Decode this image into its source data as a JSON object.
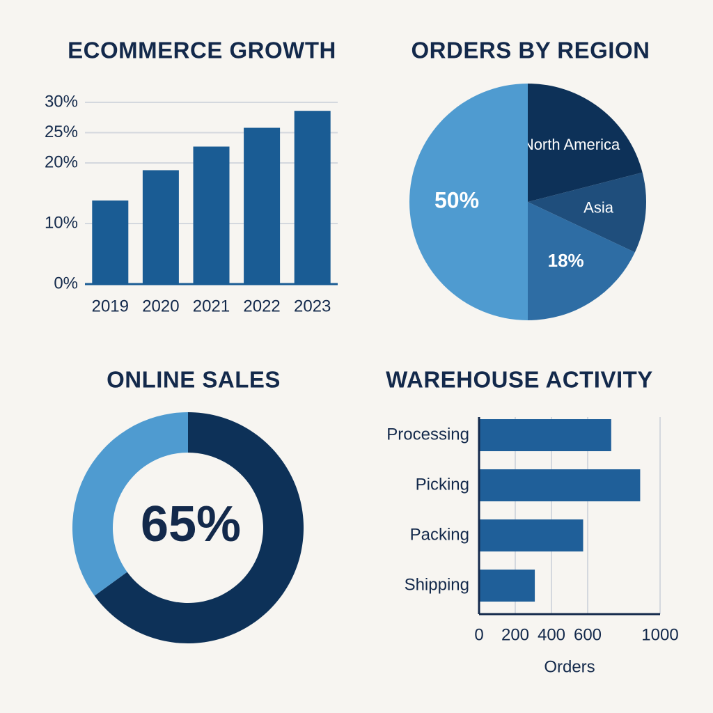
{
  "chart_data": [
    {
      "type": "bar",
      "title": "ECOMMERCE GROWTH",
      "categories": [
        "2019",
        "2020",
        "2021",
        "2022",
        "2023"
      ],
      "values": [
        13.8,
        18.8,
        22.7,
        25.8,
        28.6
      ],
      "color": "#1a5c94",
      "ylim": [
        0,
        30
      ],
      "yticks": [
        {
          "value": 0,
          "label": "0%"
        },
        {
          "value": 10,
          "label": "10%"
        },
        {
          "value": 20,
          "label": "20%"
        },
        {
          "value": 25,
          "label": "25%"
        },
        {
          "value": 30,
          "label": "30%"
        }
      ],
      "grid": true
    },
    {
      "type": "pie",
      "title": "ORDERS BY REGION",
      "categories": [
        "North America",
        "Asia",
        null,
        null
      ],
      "values": [
        21,
        11,
        18,
        50
      ],
      "value_labels": [
        null,
        null,
        "18%",
        "50%"
      ],
      "colors": [
        "#0d3158",
        "#1f4e7c",
        "#2e6da4",
        "#4f9bd0"
      ]
    },
    {
      "type": "donut",
      "title": "ONLINE SALES",
      "values": [
        65,
        35
      ],
      "value_labels": [
        "65%",
        null
      ],
      "colors": [
        "#0d3158",
        "#4f9bd0"
      ]
    },
    {
      "type": "barh",
      "title": "WAREHOUSE ACTIVITY",
      "categories": [
        "Processing",
        "Picking",
        "Packing",
        "Shipping"
      ],
      "values": [
        730,
        890,
        575,
        308
      ],
      "color": "#1f5f99",
      "xlim": [
        0,
        1000
      ],
      "xticks": [
        0,
        200,
        400,
        600,
        1000
      ],
      "xlabel": "Orders",
      "grid": true
    }
  ]
}
